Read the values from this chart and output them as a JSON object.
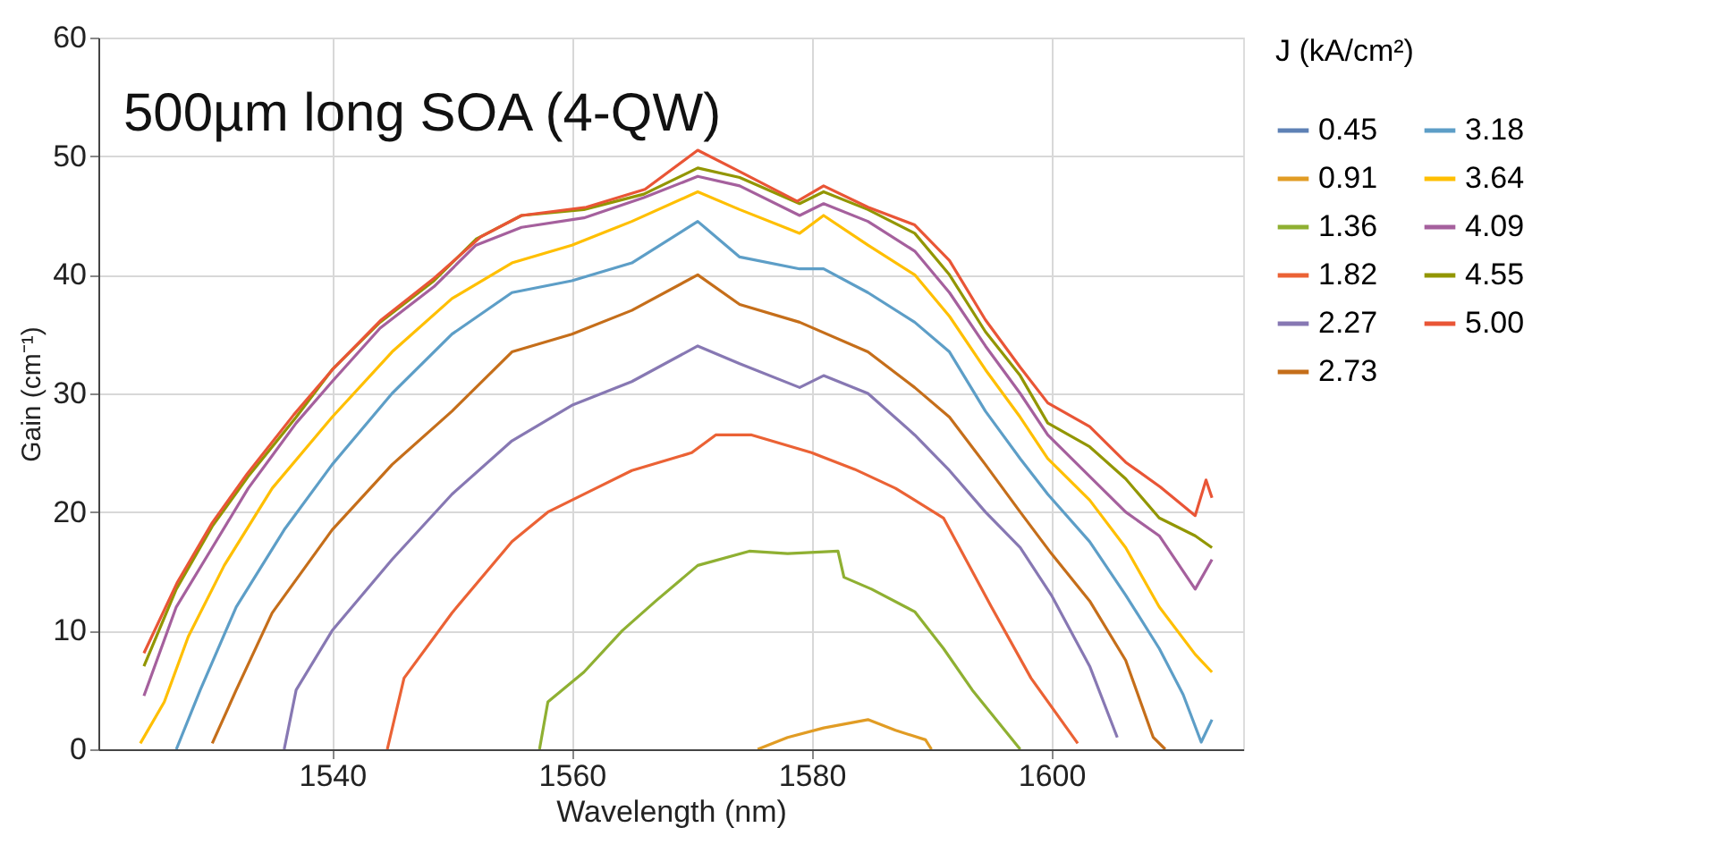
{
  "chart_data": {
    "type": "line",
    "annotations": [
      "500µm long SOA (4-QW)"
    ],
    "xlabel": "Wavelength (nm)",
    "ylabel": "Gain (cm⁻¹)",
    "legend_title": "J (kA/cm²)",
    "xlim": [
      1520.5,
      1616
    ],
    "xticks": [
      1540,
      1560,
      1580,
      1600
    ],
    "ylim": [
      0,
      60
    ],
    "yticks": [
      0,
      10,
      20,
      30,
      40,
      50,
      60
    ],
    "grid": true,
    "legend": "right",
    "marker": "none",
    "line_style": "solid",
    "series": [
      {
        "name": "0.45",
        "color": "#5e81b5"
      },
      {
        "name": "0.91",
        "color": "#e19c24",
        "x": [
          1575.5,
          1578,
          1581,
          1584.7,
          1587,
          1589.5,
          1590
        ],
        "values": [
          0,
          1,
          1.8,
          2.5,
          1.6,
          0.8,
          0
        ]
      },
      {
        "name": "1.36",
        "color": "#8fb032",
        "x": [
          1557.3,
          1558,
          1561,
          1564.2,
          1567,
          1570.5,
          1574.8,
          1578,
          1582.2,
          1582.7,
          1585,
          1588.6,
          1591,
          1593.4,
          1595,
          1597.4
        ],
        "values": [
          0,
          4,
          6.5,
          10,
          12.5,
          15.5,
          16.7,
          16.5,
          16.7,
          14.5,
          13.5,
          11.6,
          8.5,
          5,
          3,
          0
        ]
      },
      {
        "name": "1.82",
        "color": "#eb6235",
        "x": [
          1544.6,
          1546,
          1550,
          1555,
          1558,
          1562,
          1565,
          1570,
          1572,
          1575,
          1580,
          1583.6,
          1587,
          1591,
          1595,
          1598.3,
          1602.2
        ],
        "values": [
          0,
          6,
          11.5,
          17.5,
          20,
          22,
          23.5,
          25,
          26.5,
          26.5,
          25,
          23.6,
          22,
          19.5,
          12,
          6,
          0.5
        ]
      },
      {
        "name": "2.27",
        "color": "#8778b3",
        "x": [
          1536,
          1537,
          1540,
          1545,
          1550,
          1555,
          1560,
          1565,
          1570.5,
          1574,
          1579,
          1581,
          1584.7,
          1588.6,
          1591.5,
          1594.5,
          1597.4,
          1600,
          1603.2,
          1605.5
        ],
        "values": [
          0,
          5,
          10,
          16,
          21.5,
          26,
          29,
          31,
          34,
          32.5,
          30.5,
          31.5,
          30,
          26.5,
          23.5,
          20,
          17,
          13,
          7,
          1
        ]
      },
      {
        "name": "2.73",
        "color": "#c56e1a",
        "x": [
          1530,
          1532,
          1535,
          1540,
          1545,
          1550,
          1555,
          1560,
          1565,
          1570.5,
          1574,
          1579,
          1584.7,
          1588.6,
          1591.5,
          1594.5,
          1597.4,
          1600,
          1603.2,
          1606.2,
          1608.5,
          1609.5
        ],
        "values": [
          0.5,
          5,
          11.5,
          18.5,
          24,
          28.5,
          33.5,
          35,
          37,
          40,
          37.5,
          36,
          33.5,
          30.5,
          28,
          24,
          20,
          16.5,
          12.5,
          7.5,
          1,
          0
        ]
      },
      {
        "name": "3.18",
        "color": "#5d9ec7",
        "x": [
          1527,
          1529,
          1532,
          1536,
          1540,
          1545,
          1550,
          1555,
          1560,
          1565,
          1570.5,
          1574,
          1579,
          1581,
          1584.7,
          1588.6,
          1591.5,
          1594.5,
          1597.4,
          1599.7,
          1603.2,
          1606.2,
          1609,
          1611,
          1612.5,
          1613.4
        ],
        "values": [
          0,
          5,
          12,
          18.5,
          24,
          30,
          35,
          38.5,
          39.5,
          41,
          44.5,
          41.5,
          40.5,
          40.5,
          38.5,
          36,
          33.5,
          28.5,
          24.5,
          21.5,
          17.5,
          13,
          8.5,
          4.6,
          0.6,
          2.5
        ]
      },
      {
        "name": "3.64",
        "color": "#ffbf00",
        "x": [
          1524,
          1526,
          1528,
          1531,
          1535,
          1540,
          1545,
          1550,
          1555,
          1560,
          1565,
          1570.5,
          1574,
          1579,
          1581,
          1584.7,
          1588.6,
          1591.5,
          1594.5,
          1597.4,
          1599.7,
          1603.2,
          1606.2,
          1609,
          1612,
          1613.4
        ],
        "values": [
          0.5,
          4,
          9.5,
          15.5,
          22,
          28,
          33.5,
          38,
          41,
          42.5,
          44.5,
          47,
          45.5,
          43.5,
          45,
          42.5,
          40,
          36.5,
          32,
          28,
          24.5,
          21,
          17,
          12,
          8,
          6.5
        ]
      },
      {
        "name": "4.09",
        "color": "#a5609d",
        "x": [
          1524.3,
          1527,
          1530,
          1533,
          1537,
          1540,
          1544,
          1548.5,
          1552,
          1555.8,
          1561,
          1566,
          1570.5,
          1574,
          1579,
          1581,
          1584.7,
          1588.6,
          1591.5,
          1594.5,
          1597.4,
          1599.7,
          1603.2,
          1606.2,
          1609,
          1612,
          1613.4
        ],
        "values": [
          4.5,
          12,
          17,
          22,
          27.5,
          31,
          35.5,
          39,
          42.5,
          44,
          44.8,
          46.5,
          48.3,
          47.5,
          45,
          46,
          44.5,
          42,
          38.5,
          34,
          30,
          26.5,
          23,
          20,
          18,
          13.5,
          16
        ]
      },
      {
        "name": "4.55",
        "color": "#929600",
        "x": [
          1524.3,
          1527,
          1530,
          1533,
          1537,
          1540,
          1544,
          1548.5,
          1552,
          1555.8,
          1561,
          1566,
          1570.5,
          1574,
          1579,
          1581,
          1584.7,
          1588.6,
          1591.5,
          1594.5,
          1597.4,
          1599.7,
          1603.2,
          1606.2,
          1609,
          1612,
          1613.4
        ],
        "values": [
          7,
          13.5,
          18.8,
          23,
          28,
          32,
          36,
          39.5,
          43,
          45,
          45.5,
          46.8,
          49,
          48.2,
          46,
          47,
          45.5,
          43.5,
          40,
          35.2,
          31.5,
          27.5,
          25.5,
          22.8,
          19.5,
          18,
          17
        ]
      },
      {
        "name": "5.00",
        "color": "#e95536",
        "x": [
          1524.3,
          1527.1,
          1530,
          1532.9,
          1536.8,
          1540.2,
          1544.1,
          1548.5,
          1552.4,
          1555.8,
          1561.2,
          1566.1,
          1570.5,
          1574,
          1578.8,
          1581,
          1584.7,
          1588.6,
          1591.5,
          1594.5,
          1597.4,
          1599.7,
          1603.2,
          1606.2,
          1609.1,
          1612,
          1612.9,
          1613.4
        ],
        "values": [
          8.1,
          14.1,
          19.1,
          23.2,
          28.2,
          32.2,
          36.2,
          39.7,
          43.2,
          45,
          45.7,
          47.2,
          50.5,
          48.7,
          46.2,
          47.5,
          45.7,
          44.2,
          41.2,
          36.2,
          32.2,
          29.2,
          27.2,
          24.2,
          22.1,
          19.7,
          22.7,
          21.2
        ]
      }
    ]
  }
}
